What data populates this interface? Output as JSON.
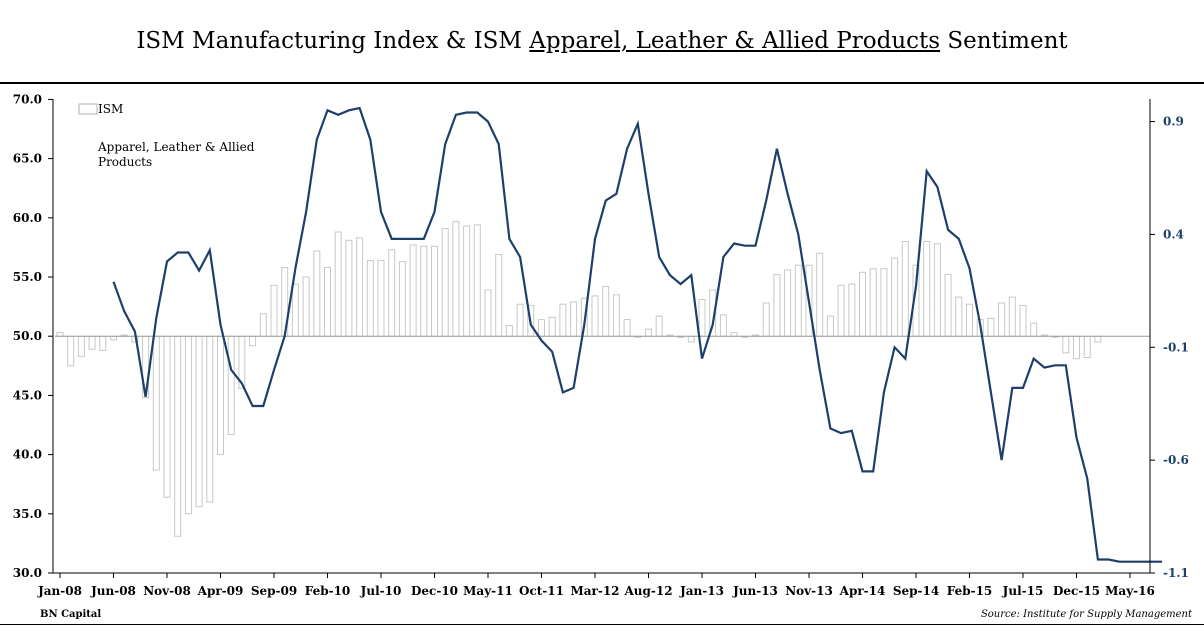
{
  "header": {
    "title_part1": "ISM Manufacturing Index & ISM ",
    "title_part2": "Apparel, Leather & Allied Products",
    "title_part3": " Sentiment"
  },
  "footer": {
    "left": "BN Capital",
    "right": "Source: Institute for Supply Management"
  },
  "colors": {
    "bars": "#c8c8c8",
    "line": "#1f3f6b",
    "baseline": "#999999"
  },
  "chart_data": {
    "type": "bar+line",
    "legend": [
      "ISM",
      "Apparel, Leather & Allied Products"
    ],
    "legend_position": "top-left",
    "grid": false,
    "x_labels": [
      "Jan-08",
      "Jun-08",
      "Nov-08",
      "Apr-09",
      "Sep-09",
      "Feb-10",
      "Jul-10",
      "Dec-10",
      "May-11",
      "Oct-11",
      "Mar-12",
      "Aug-12",
      "Jan-13",
      "Jun-13",
      "Nov-13",
      "Apr-14",
      "Sep-14",
      "Feb-15",
      "Jul-15",
      "Dec-15",
      "May-16"
    ],
    "x_label_every_months": 5,
    "left_axis": {
      "range": [
        30,
        70
      ],
      "ticks": [
        "30.0",
        "35.0",
        "40.0",
        "45.0",
        "50.0",
        "55.0",
        "60.0",
        "65.0",
        "70.0"
      ]
    },
    "right_axis": {
      "range": [
        -1.1,
        1.0
      ],
      "ticks": [
        "-1.1",
        "-0.6",
        "-0.1",
        "0.4",
        "0.9"
      ]
    },
    "series": [
      {
        "name": "ISM",
        "kind": "bar",
        "axis": "left",
        "start": "Jan-08",
        "values": [
          50.3,
          47.5,
          48.3,
          48.9,
          48.8,
          49.7,
          50.1,
          49.5,
          44.8,
          38.7,
          36.4,
          33.1,
          35.0,
          35.6,
          36.0,
          40.0,
          41.7,
          45.6,
          49.2,
          51.9,
          54.3,
          55.8,
          54.4,
          55.0,
          57.2,
          55.8,
          58.8,
          58.1,
          58.3,
          56.4,
          56.4,
          57.3,
          56.3,
          57.7,
          57.6,
          57.6,
          59.1,
          59.7,
          59.3,
          59.4,
          53.9,
          56.9,
          50.9,
          52.7,
          52.6,
          51.4,
          51.6,
          52.7,
          52.9,
          53.2,
          53.4,
          54.2,
          53.5,
          51.4,
          50.0,
          50.6,
          51.7,
          50.1,
          49.9,
          49.5,
          53.1,
          53.9,
          51.8,
          50.3,
          50.0,
          50.1,
          52.8,
          55.2,
          55.6,
          56.0,
          56.0,
          57.0,
          51.7,
          54.3,
          54.4,
          55.4,
          55.7,
          55.7,
          56.6,
          58.0,
          56.0,
          58.0,
          57.8,
          55.2,
          53.3,
          52.7,
          51.4,
          51.5,
          52.8,
          53.3,
          52.6,
          51.1,
          50.1,
          50.0,
          48.6,
          48.1,
          48.2,
          49.5
        ]
      },
      {
        "name": "Apparel, Leather & Allied Products",
        "kind": "line",
        "axis": "right",
        "start": "Jun-08",
        "values": [
          0.19,
          0.06,
          -0.03,
          -0.32,
          0.03,
          0.28,
          0.32,
          0.32,
          0.24,
          0.33,
          0.0,
          -0.2,
          -0.26,
          -0.36,
          -0.36,
          -0.2,
          -0.05,
          0.25,
          0.5,
          0.82,
          0.95,
          0.93,
          0.95,
          0.96,
          0.82,
          0.5,
          0.38,
          0.38,
          0.38,
          0.38,
          0.5,
          0.8,
          0.93,
          0.94,
          0.94,
          0.9,
          0.8,
          0.38,
          0.3,
          0.0,
          -0.07,
          -0.12,
          -0.3,
          -0.28,
          0.0,
          0.38,
          0.55,
          0.58,
          0.78,
          0.89,
          0.58,
          0.3,
          0.22,
          0.18,
          0.22,
          -0.15,
          0.0,
          0.3,
          0.36,
          0.35,
          0.35,
          0.55,
          0.78,
          0.58,
          0.4,
          0.1,
          -0.2,
          -0.46,
          -0.48,
          -0.47,
          -0.65,
          -0.65,
          -0.3,
          -0.1,
          -0.15,
          0.17,
          0.68,
          0.61,
          0.42,
          0.38,
          0.25,
          0.0,
          -0.3,
          -0.6,
          -0.28,
          -0.28,
          -0.15,
          -0.19,
          -0.18,
          -0.18,
          -0.5,
          -0.68,
          -1.04,
          -1.04,
          -1.05,
          -1.05,
          -1.05,
          -1.05,
          -1.05
        ]
      }
    ]
  }
}
